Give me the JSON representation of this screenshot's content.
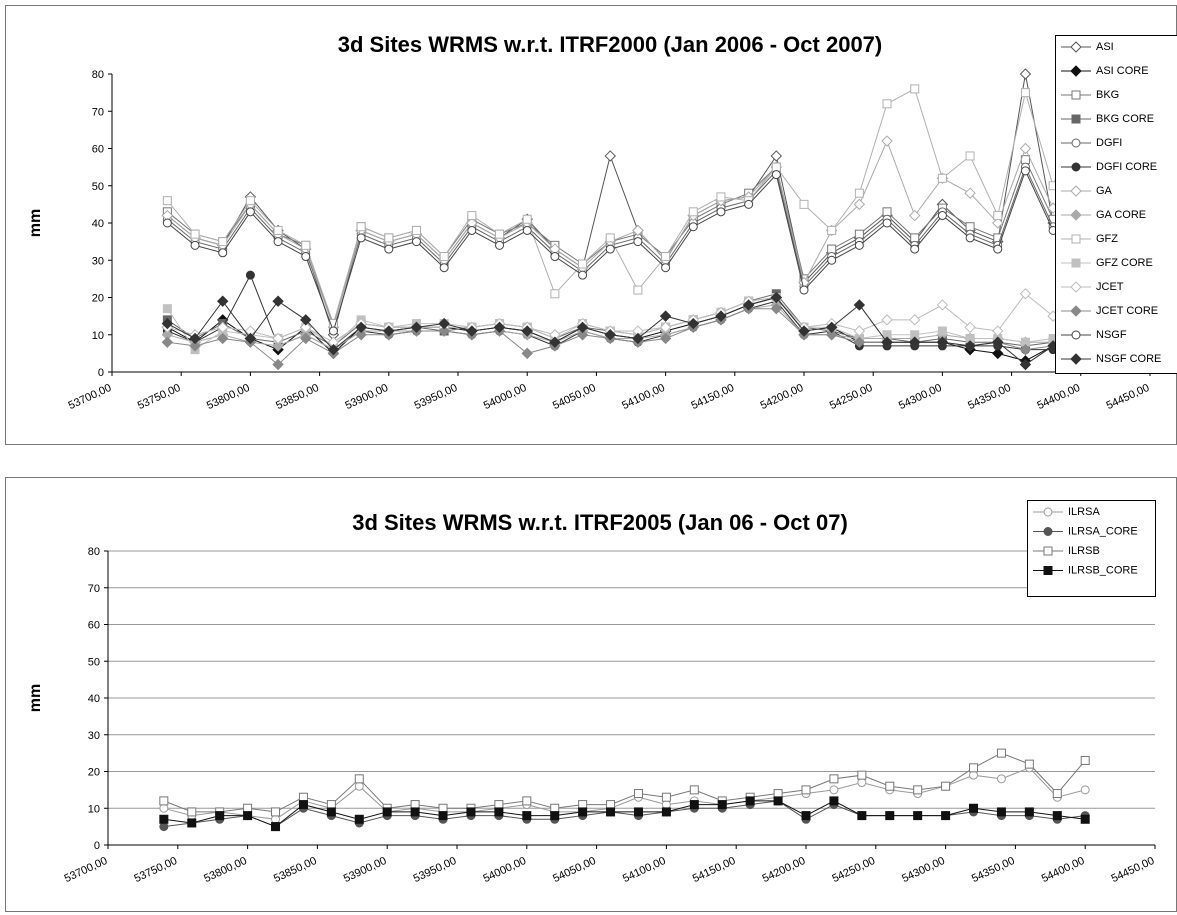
{
  "chart_data": [
    {
      "type": "line",
      "title": "3d Sites WRMS w.r.t. ITRF2000 (Jan 2006 - Oct 2007)",
      "y_label": "mm",
      "x": [
        53740,
        53760,
        53780,
        53800,
        53820,
        53840,
        53860,
        53880,
        53900,
        53920,
        53940,
        53960,
        53980,
        54000,
        54020,
        54040,
        54060,
        54080,
        54100,
        54120,
        54140,
        54160,
        54180,
        54200,
        54220,
        54240,
        54260,
        54280,
        54300,
        54320,
        54340,
        54360,
        54380,
        54400
      ],
      "xlim": [
        53700,
        54450
      ],
      "xticks": [
        {
          "value": 53700,
          "label": "53700,00"
        },
        {
          "value": 53750,
          "label": "53750,00"
        },
        {
          "value": 53800,
          "label": "53800,00"
        },
        {
          "value": 53850,
          "label": "53850,00"
        },
        {
          "value": 53900,
          "label": "53900,00"
        },
        {
          "value": 53950,
          "label": "53950,00"
        },
        {
          "value": 54000,
          "label": "54000,00"
        },
        {
          "value": 54050,
          "label": "54050,00"
        },
        {
          "value": 54100,
          "label": "54100,00"
        },
        {
          "value": 54150,
          "label": "54150,00"
        },
        {
          "value": 54200,
          "label": "54200,00"
        },
        {
          "value": 54250,
          "label": "54250,00"
        },
        {
          "value": 54300,
          "label": "54300,00"
        },
        {
          "value": 54350,
          "label": "54350,00"
        },
        {
          "value": 54400,
          "label": "54400,00"
        },
        {
          "value": 54450,
          "label": "54450,00"
        }
      ],
      "ylim": [
        0,
        80
      ],
      "yticks": [
        0,
        10,
        20,
        30,
        40,
        50,
        60,
        70,
        80
      ],
      "grid": false,
      "series": [
        {
          "name": "ASI",
          "color": "#555555",
          "marker": "diamond",
          "filled": false,
          "values": [
            42,
            36,
            34,
            47,
            38,
            33,
            10,
            38,
            35,
            37,
            30,
            40,
            36,
            41,
            33,
            28,
            58,
            38,
            30,
            42,
            46,
            47,
            58,
            24,
            32,
            36,
            42,
            35,
            45,
            38,
            35,
            80,
            40,
            47
          ]
        },
        {
          "name": "ASI CORE",
          "color": "#111111",
          "marker": "diamond",
          "filled": true,
          "values": [
            12,
            8,
            14,
            9,
            6,
            12,
            5,
            12,
            11,
            12,
            12,
            11,
            12,
            11,
            8,
            12,
            10,
            9,
            11,
            13,
            15,
            18,
            20,
            11,
            12,
            8,
            8,
            8,
            8,
            6,
            5,
            3,
            7,
            8
          ]
        },
        {
          "name": "BKG",
          "color": "#777777",
          "marker": "square",
          "filled": false,
          "values": [
            43,
            37,
            35,
            45,
            37,
            34,
            12,
            39,
            36,
            38,
            31,
            41,
            37,
            40,
            34,
            29,
            35,
            37,
            31,
            41,
            45,
            48,
            55,
            25,
            33,
            37,
            43,
            36,
            44,
            39,
            36,
            57,
            41,
            46
          ]
        },
        {
          "name": "BKG CORE",
          "color": "#666666",
          "marker": "square",
          "filled": true,
          "values": [
            14,
            9,
            13,
            9,
            8,
            11,
            7,
            13,
            12,
            12,
            11,
            12,
            13,
            12,
            9,
            12,
            11,
            10,
            12,
            14,
            16,
            19,
            21,
            12,
            11,
            9,
            9,
            8,
            9,
            8,
            8,
            7,
            8,
            9
          ]
        },
        {
          "name": "DGFI",
          "color": "#666666",
          "marker": "circle",
          "filled": false,
          "values": [
            41,
            35,
            33,
            44,
            36,
            32,
            13,
            37,
            34,
            36,
            29,
            39,
            35,
            39,
            32,
            27,
            34,
            36,
            29,
            40,
            44,
            46,
            54,
            23,
            31,
            35,
            41,
            34,
            43,
            37,
            34,
            55,
            39,
            45
          ]
        },
        {
          "name": "DGFI CORE",
          "color": "#333333",
          "marker": "circle",
          "filled": true,
          "values": [
            11,
            8,
            12,
            26,
            7,
            10,
            6,
            11,
            10,
            11,
            11,
            10,
            11,
            10,
            7,
            11,
            9,
            8,
            10,
            12,
            14,
            17,
            19,
            10,
            11,
            7,
            7,
            7,
            7,
            7,
            7,
            6,
            6,
            7
          ]
        },
        {
          "name": "GA",
          "color": "#aaaaaa",
          "marker": "diamond",
          "filled": false,
          "values": [
            42,
            36,
            34,
            45,
            37,
            33,
            12,
            38,
            35,
            37,
            30,
            40,
            36,
            40,
            33,
            28,
            35,
            38,
            30,
            42,
            46,
            47,
            55,
            24,
            38,
            45,
            62,
            42,
            52,
            48,
            40,
            60,
            44,
            50
          ]
        },
        {
          "name": "GA CORE",
          "color": "#aaaaaa",
          "marker": "diamond",
          "filled": true,
          "values": [
            10,
            8,
            10,
            8,
            7,
            10,
            6,
            11,
            11,
            11,
            11,
            10,
            11,
            10,
            8,
            11,
            9,
            9,
            10,
            12,
            14,
            17,
            18,
            10,
            10,
            9,
            9,
            9,
            10,
            9,
            9,
            8,
            8,
            8
          ]
        },
        {
          "name": "GFZ",
          "color": "#b0b0b0",
          "marker": "square",
          "filled": false,
          "values": [
            46,
            37,
            35,
            46,
            38,
            34,
            13,
            39,
            36,
            38,
            31,
            42,
            37,
            41,
            21,
            29,
            36,
            22,
            31,
            43,
            47,
            46,
            55,
            45,
            38,
            48,
            72,
            76,
            52,
            58,
            42,
            75,
            50,
            72
          ]
        },
        {
          "name": "GFZ CORE",
          "color": "#c0c0c0",
          "marker": "square",
          "filled": true,
          "values": [
            17,
            6,
            11,
            10,
            9,
            12,
            7,
            14,
            12,
            13,
            13,
            12,
            13,
            12,
            9,
            13,
            11,
            10,
            12,
            14,
            16,
            19,
            20,
            12,
            12,
            9,
            10,
            10,
            11,
            9,
            9,
            8,
            9,
            9
          ]
        },
        {
          "name": "JCET",
          "color": "#bbbbbb",
          "marker": "diamond",
          "filled": false,
          "values": [
            12,
            10,
            12,
            11,
            9,
            12,
            8,
            13,
            12,
            12,
            12,
            12,
            13,
            12,
            10,
            13,
            11,
            11,
            12,
            14,
            16,
            19,
            20,
            12,
            13,
            11,
            14,
            14,
            18,
            12,
            11,
            21,
            15,
            17
          ]
        },
        {
          "name": "JCET CORE",
          "color": "#888888",
          "marker": "diamond",
          "filled": true,
          "values": [
            8,
            7,
            9,
            8,
            2,
            9,
            5,
            10,
            10,
            11,
            11,
            10,
            11,
            5,
            7,
            10,
            9,
            8,
            9,
            12,
            14,
            17,
            17,
            10,
            10,
            8,
            8,
            8,
            8,
            7,
            8,
            6,
            7,
            8
          ]
        },
        {
          "name": "NSGF",
          "color": "#444444",
          "marker": "circle",
          "filled": false,
          "values": [
            40,
            34,
            32,
            43,
            35,
            31,
            11,
            36,
            33,
            35,
            28,
            38,
            34,
            38,
            31,
            26,
            33,
            35,
            28,
            39,
            43,
            45,
            53,
            22,
            30,
            34,
            40,
            33,
            42,
            36,
            33,
            54,
            38,
            44
          ]
        },
        {
          "name": "NSGF CORE",
          "color": "#333333",
          "marker": "diamond",
          "filled": true,
          "values": [
            13,
            9,
            19,
            9,
            19,
            14,
            6,
            12,
            11,
            12,
            13,
            11,
            12,
            11,
            8,
            12,
            10,
            9,
            15,
            13,
            15,
            18,
            20,
            11,
            12,
            18,
            8,
            8,
            8,
            7,
            8,
            2,
            7,
            8
          ]
        }
      ]
    },
    {
      "type": "line",
      "title": "3d Sites WRMS w.r.t. ITRF2005 (Jan 06 - Oct 07)",
      "y_label": "mm",
      "x": [
        53740,
        53760,
        53780,
        53800,
        53820,
        53840,
        53860,
        53880,
        53900,
        53920,
        53940,
        53960,
        53980,
        54000,
        54020,
        54040,
        54060,
        54080,
        54100,
        54120,
        54140,
        54160,
        54180,
        54200,
        54220,
        54240,
        54260,
        54280,
        54300,
        54320,
        54340,
        54360,
        54380,
        54400
      ],
      "xlim": [
        53700,
        54450
      ],
      "xticks": [
        {
          "value": 53700,
          "label": "53700,00"
        },
        {
          "value": 53750,
          "label": "53750,00"
        },
        {
          "value": 53800,
          "label": "53800,00"
        },
        {
          "value": 53850,
          "label": "53850,00"
        },
        {
          "value": 53900,
          "label": "53900,00"
        },
        {
          "value": 53950,
          "label": "53950,00"
        },
        {
          "value": 54000,
          "label": "54000,00"
        },
        {
          "value": 54050,
          "label": "54050,00"
        },
        {
          "value": 54100,
          "label": "54100,00"
        },
        {
          "value": 54150,
          "label": "54150,00"
        },
        {
          "value": 54200,
          "label": "54200,00"
        },
        {
          "value": 54250,
          "label": "54250,00"
        },
        {
          "value": 54300,
          "label": "54300,00"
        },
        {
          "value": 54350,
          "label": "54350,00"
        },
        {
          "value": 54400,
          "label": "54400,00"
        },
        {
          "value": 54450,
          "label": "54450,00"
        }
      ],
      "ylim": [
        0,
        80
      ],
      "yticks": [
        0,
        10,
        20,
        30,
        40,
        50,
        60,
        70,
        80
      ],
      "grid": true,
      "series": [
        {
          "name": "ILRSA",
          "color": "#999999",
          "marker": "circle",
          "filled": false,
          "values": [
            10,
            8,
            9,
            8,
            7,
            12,
            10,
            16,
            9,
            10,
            9,
            9,
            10,
            11,
            9,
            9,
            10,
            13,
            11,
            12,
            11,
            12,
            13,
            14,
            15,
            17,
            15,
            14,
            16,
            19,
            18,
            21,
            13,
            15
          ]
        },
        {
          "name": "ILRSA_CORE",
          "color": "#555555",
          "marker": "circle",
          "filled": true,
          "values": [
            5,
            6,
            7,
            8,
            5,
            10,
            8,
            6,
            8,
            8,
            7,
            8,
            8,
            7,
            7,
            8,
            9,
            8,
            9,
            10,
            10,
            11,
            12,
            7,
            11,
            8,
            8,
            8,
            8,
            9,
            8,
            8,
            7,
            8
          ]
        },
        {
          "name": "ILRSB",
          "color": "#777777",
          "marker": "square",
          "filled": false,
          "values": [
            12,
            9,
            9,
            10,
            9,
            13,
            11,
            18,
            10,
            11,
            10,
            10,
            11,
            12,
            10,
            11,
            11,
            14,
            13,
            15,
            12,
            13,
            14,
            15,
            18,
            19,
            16,
            15,
            16,
            21,
            25,
            22,
            14,
            23
          ]
        },
        {
          "name": "ILRSB_CORE",
          "color": "#111111",
          "marker": "square",
          "filled": true,
          "values": [
            7,
            6,
            8,
            8,
            5,
            11,
            9,
            7,
            9,
            9,
            8,
            9,
            9,
            8,
            8,
            9,
            9,
            9,
            9,
            11,
            11,
            12,
            12,
            8,
            12,
            8,
            8,
            8,
            8,
            10,
            9,
            9,
            8,
            7
          ]
        }
      ]
    }
  ]
}
